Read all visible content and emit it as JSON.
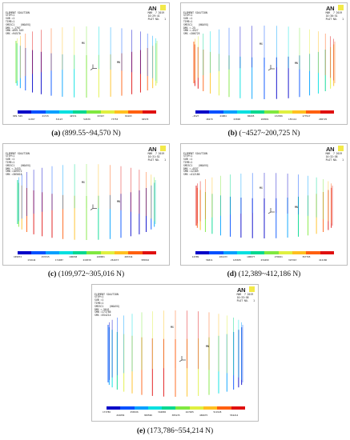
{
  "panels": [
    {
      "id": "a",
      "header": [
        "ELEMENT SOLUTION",
        "",
        "STEP=1",
        "SUB =1",
        "TIME=1",
        "SMISC1    (NOAVG)",
        "DMX =.1767",
        "SMN =899.549",
        "SMX =94570"
      ],
      "meta": [
        "MAR  7 2019",
        "10:29:41",
        "PLOT NO.   1"
      ],
      "node_labels": [
        "MX",
        "MN"
      ],
      "scale_top": [
        "899.549",
        "21715",
        "42531",
        "63347",
        "84163"
      ],
      "scale_bottom": [
        "11307",
        "32123",
        "52939",
        "73755",
        "94570"
      ],
      "caption_letter": "(a)",
      "caption_range": "(899.55~94,570 N)"
    },
    {
      "id": "b",
      "header": [
        "ELEMENT SOLUTION",
        "",
        "STEP=1",
        "SUB =1",
        "TIME=1",
        "SMISC1    (NOAVG)",
        "DMX =.25",
        "SMN =-4527",
        "SMX =200725"
      ],
      "meta": [
        "MAR  7 2019",
        "10:30:51",
        "PLOT NO.   1"
      ],
      "node_labels": [
        "MX",
        "MN"
      ],
      "scale_top": [
        "-4527",
        "41084",
        "86695",
        "132306",
        "177917"
      ],
      "scale_bottom": [
        "18279",
        "63890",
        "109501",
        "155112",
        "200725"
      ],
      "caption_letter": "(b)",
      "caption_range": "(−4527~200,725 N)"
    },
    {
      "id": "c",
      "header": [
        "ELEMENT SOLUTION",
        "",
        "STEP=1",
        "SUB =1",
        "TIME=1",
        "SMISC1    (NOAVG)",
        "DMX =.3433",
        "SMN =109972",
        "SMX =305016"
      ],
      "meta": [
        "MAR  7 2019",
        "10:31:52",
        "PLOT NO.   1"
      ],
      "node_labels": [
        "MX",
        "MN"
      ],
      "scale_top": [
        "109972",
        "153315",
        "196658",
        "240001",
        "283344"
      ],
      "scale_bottom": [
        "131644",
        "174987",
        "218330",
        "261673",
        "305016"
      ],
      "caption_letter": "(c)",
      "caption_range": "(109,972~305,016 N)"
    },
    {
      "id": "d",
      "header": [
        "ELEMENT SOLUTION",
        "",
        "STEP=1",
        "SUB =1",
        "TIME=1",
        "SMISC1    (NOAVG)",
        "DMX =.4537",
        "SMN =12389",
        "SMX =412186"
      ],
      "meta": [
        "MAR  7 2019",
        "10:32:58",
        "PLOT NO.   1"
      ],
      "node_labels": [
        "MX",
        "MN"
      ],
      "scale_top": [
        "12389",
        "101233",
        "190077",
        "278921",
        "367765"
      ],
      "scale_bottom": [
        "56811",
        "145655",
        "234499",
        "323343",
        "412186"
      ],
      "caption_letter": "(d)",
      "caption_range": "(12,389~412,186 N)"
    },
    {
      "id": "e",
      "header": [
        "ELEMENT SOLUTION",
        "",
        "STEP=1",
        "SUB =1",
        "TIME=1",
        "SMISC1    (NOAVG)",
        "DMX =.5641",
        "SMN =173786",
        "SMX =554214"
      ],
      "meta": [
        "MAR  7 2019",
        "10:33:58",
        "PLOT NO.   1"
      ],
      "node_labels": [
        "MX",
        "MN"
      ],
      "scale_top": [
        "173786",
        "258326",
        "342865",
        "427405",
        "511945"
      ],
      "scale_bottom": [
        "216056",
        "300596",
        "385135",
        "469675",
        "554214"
      ],
      "caption_letter": "(e)",
      "caption_range": "(173,786~554,214 N)"
    }
  ],
  "colors": {
    "legend": [
      "#0000c8",
      "#0050ff",
      "#00a0ff",
      "#00e0e0",
      "#00d890",
      "#80e840",
      "#e0f040",
      "#ffc020",
      "#ff6010",
      "#e01010"
    ],
    "ansys_yellow": "#f2e94a"
  }
}
